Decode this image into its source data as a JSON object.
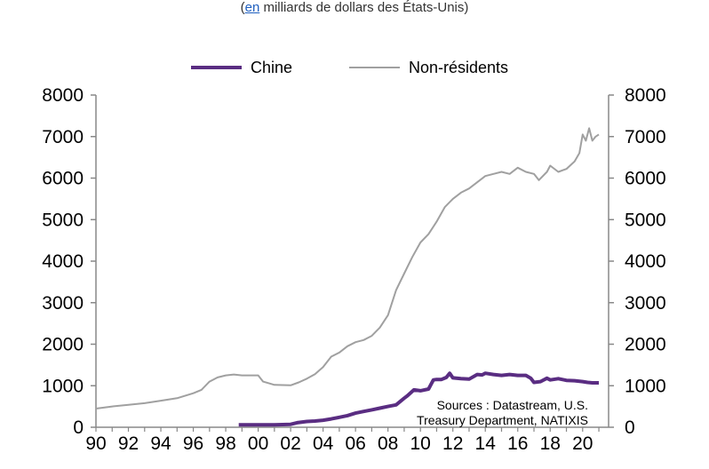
{
  "subtitle": {
    "open": "(",
    "link": "en",
    "rest": " milliards de dollars des États-Unis)"
  },
  "chart_data": {
    "type": "line",
    "title": "",
    "subtitle": "(en milliards de dollars des États-Unis)",
    "xlabel": "",
    "ylabel": "",
    "xlim": [
      1990,
      2021.6
    ],
    "ylim": [
      0,
      8000
    ],
    "y_ticks": [
      0,
      1000,
      2000,
      3000,
      4000,
      5000,
      6000,
      7000,
      8000
    ],
    "y_tick_labels": [
      "0",
      "1000",
      "2000",
      "3000",
      "4000",
      "5000",
      "6000",
      "7000",
      "8000"
    ],
    "x_ticks": [
      1990,
      1992,
      1994,
      1996,
      1998,
      2000,
      2002,
      2004,
      2006,
      2008,
      2010,
      2012,
      2014,
      2016,
      2018,
      2020
    ],
    "x_tick_labels": [
      "90",
      "92",
      "94",
      "96",
      "98",
      "00",
      "02",
      "04",
      "06",
      "08",
      "10",
      "12",
      "14",
      "16",
      "18",
      "20"
    ],
    "grid": false,
    "legend_position": "top-center",
    "annotation": [
      "Sources : Datastream, U.S.",
      "Treasury Department, NATIXIS"
    ],
    "series": [
      {
        "name": "Chine",
        "color": "#5a2d82",
        "x": [
          1998.8,
          2000,
          2001,
          2002,
          2002.4,
          2003,
          2003.5,
          2004,
          2004.5,
          2005,
          2005.5,
          2006,
          2006.5,
          2007,
          2007.5,
          2008,
          2008.5,
          2009,
          2009.2,
          2009.6,
          2010,
          2010.5,
          2010.8,
          2011,
          2011.3,
          2011.6,
          2011.8,
          2012,
          2012.5,
          2013,
          2013.5,
          2013.8,
          2014,
          2014.5,
          2015,
          2015.5,
          2016,
          2016.5,
          2016.8,
          2017,
          2017.4,
          2017.8,
          2018,
          2018.5,
          2019,
          2019.5,
          2020,
          2020.3,
          2020.6,
          2021
        ],
        "values": [
          60,
          60,
          60,
          70,
          110,
          140,
          150,
          170,
          200,
          240,
          280,
          340,
          380,
          420,
          460,
          500,
          540,
          700,
          760,
          900,
          880,
          920,
          1140,
          1150,
          1150,
          1200,
          1300,
          1190,
          1170,
          1160,
          1270,
          1260,
          1300,
          1270,
          1250,
          1270,
          1250,
          1250,
          1180,
          1080,
          1100,
          1180,
          1140,
          1170,
          1130,
          1120,
          1100,
          1080,
          1070,
          1070
        ]
      },
      {
        "name": "Non-résidents",
        "color": "#a0a0a0",
        "x": [
          1990,
          1991,
          1992,
          1993,
          1994,
          1995,
          1996,
          1996.5,
          1997,
          1997.5,
          1998,
          1998.5,
          1999,
          2000,
          2000.3,
          2001,
          2002,
          2002.5,
          2003,
          2003.5,
          2004,
          2004.5,
          2005,
          2005.5,
          2006,
          2006.5,
          2007,
          2007.5,
          2008,
          2008.5,
          2009,
          2009.5,
          2010,
          2010.5,
          2011,
          2011.5,
          2012,
          2012.5,
          2013,
          2013.5,
          2014,
          2014.5,
          2015,
          2015.5,
          2016,
          2016.5,
          2017,
          2017.3,
          2017.8,
          2018,
          2018.5,
          2019,
          2019.5,
          2019.8,
          2020,
          2020.2,
          2020.4,
          2020.6,
          2020.8,
          2021
        ],
        "values": [
          450,
          500,
          540,
          580,
          640,
          700,
          820,
          900,
          1100,
          1200,
          1250,
          1270,
          1250,
          1250,
          1100,
          1020,
          1010,
          1080,
          1170,
          1280,
          1450,
          1700,
          1800,
          1950,
          2050,
          2100,
          2200,
          2400,
          2700,
          3300,
          3700,
          4100,
          4450,
          4650,
          4950,
          5300,
          5500,
          5650,
          5750,
          5900,
          6050,
          6100,
          6150,
          6100,
          6250,
          6150,
          6100,
          5950,
          6150,
          6300,
          6150,
          6220,
          6400,
          6600,
          7050,
          6900,
          7200,
          6900,
          7000,
          7050
        ]
      }
    ]
  }
}
